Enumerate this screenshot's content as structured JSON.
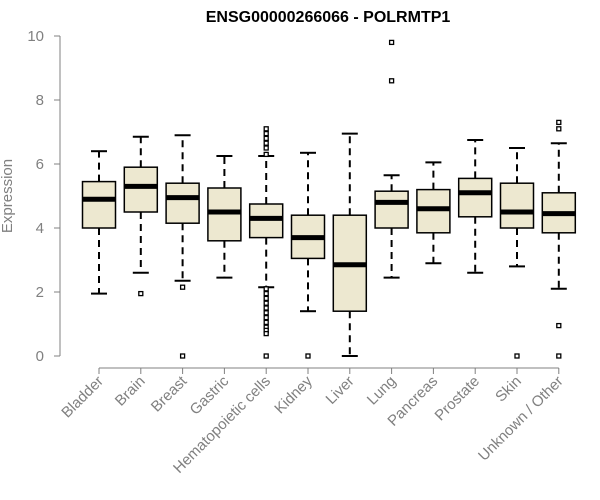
{
  "chart_data": {
    "type": "boxplot",
    "title": "ENSG00000266066 - POLRMTP1",
    "xlabel": "",
    "ylabel": "Expression",
    "ylim": [
      0,
      10
    ],
    "yticks": [
      0,
      2,
      4,
      6,
      8,
      10
    ],
    "grid": false,
    "colors": {
      "box_fill": "#EDE8D0",
      "box_stroke": "#000000",
      "median": "#000000",
      "axis": "#808080",
      "tick_text": "#808080"
    },
    "categories": [
      "Bladder",
      "Brain",
      "Breast",
      "Gastric",
      "Hematopoietic cells",
      "Kidney",
      "Liver",
      "Lung",
      "Pancreas",
      "Prostate",
      "Skin",
      "Unknown / Other"
    ],
    "boxes": [
      {
        "category": "Bladder",
        "whisker_low": 1.95,
        "q1": 4.0,
        "median": 4.9,
        "q3": 5.45,
        "whisker_high": 6.4,
        "outliers": []
      },
      {
        "category": "Brain",
        "whisker_low": 2.6,
        "q1": 4.5,
        "median": 5.3,
        "q3": 5.9,
        "whisker_high": 6.85,
        "outliers": [
          1.95
        ]
      },
      {
        "category": "Breast",
        "whisker_low": 2.35,
        "q1": 4.15,
        "median": 4.95,
        "q3": 5.4,
        "whisker_high": 6.9,
        "outliers": [
          2.15,
          0.0
        ]
      },
      {
        "category": "Gastric",
        "whisker_low": 2.45,
        "q1": 3.6,
        "median": 4.5,
        "q3": 5.25,
        "whisker_high": 6.25,
        "outliers": []
      },
      {
        "category": "Hematopoietic cells",
        "whisker_low": 2.15,
        "q1": 3.7,
        "median": 4.3,
        "q3": 4.75,
        "whisker_high": 6.25,
        "outliers": [
          7.1,
          6.95,
          6.8,
          6.65,
          6.5,
          6.3,
          2.1,
          1.95,
          1.8,
          1.65,
          1.5,
          1.35,
          1.2,
          1.05,
          0.9,
          0.8,
          0.7,
          0.0
        ]
      },
      {
        "category": "Kidney",
        "whisker_low": 1.4,
        "q1": 3.05,
        "median": 3.7,
        "q3": 4.4,
        "whisker_high": 6.35,
        "outliers": [
          0.0
        ]
      },
      {
        "category": "Liver",
        "whisker_low": 0.0,
        "q1": 1.4,
        "median": 2.85,
        "q3": 4.4,
        "whisker_high": 6.95,
        "outliers": []
      },
      {
        "category": "Lung",
        "whisker_low": 2.45,
        "q1": 4.0,
        "median": 4.8,
        "q3": 5.15,
        "whisker_high": 5.65,
        "outliers": [
          9.8,
          8.6
        ]
      },
      {
        "category": "Pancreas",
        "whisker_low": 2.9,
        "q1": 3.85,
        "median": 4.6,
        "q3": 5.2,
        "whisker_high": 6.05,
        "outliers": []
      },
      {
        "category": "Prostate",
        "whisker_low": 2.6,
        "q1": 4.35,
        "median": 5.1,
        "q3": 5.55,
        "whisker_high": 6.75,
        "outliers": []
      },
      {
        "category": "Skin",
        "whisker_low": 2.8,
        "q1": 4.0,
        "median": 4.5,
        "q3": 5.4,
        "whisker_high": 6.5,
        "outliers": [
          0.0
        ]
      },
      {
        "category": "Unknown / Other",
        "whisker_low": 2.1,
        "q1": 3.85,
        "median": 4.45,
        "q3": 5.1,
        "whisker_high": 6.65,
        "outliers": [
          7.3,
          7.1,
          0.95,
          0.0
        ]
      }
    ]
  }
}
